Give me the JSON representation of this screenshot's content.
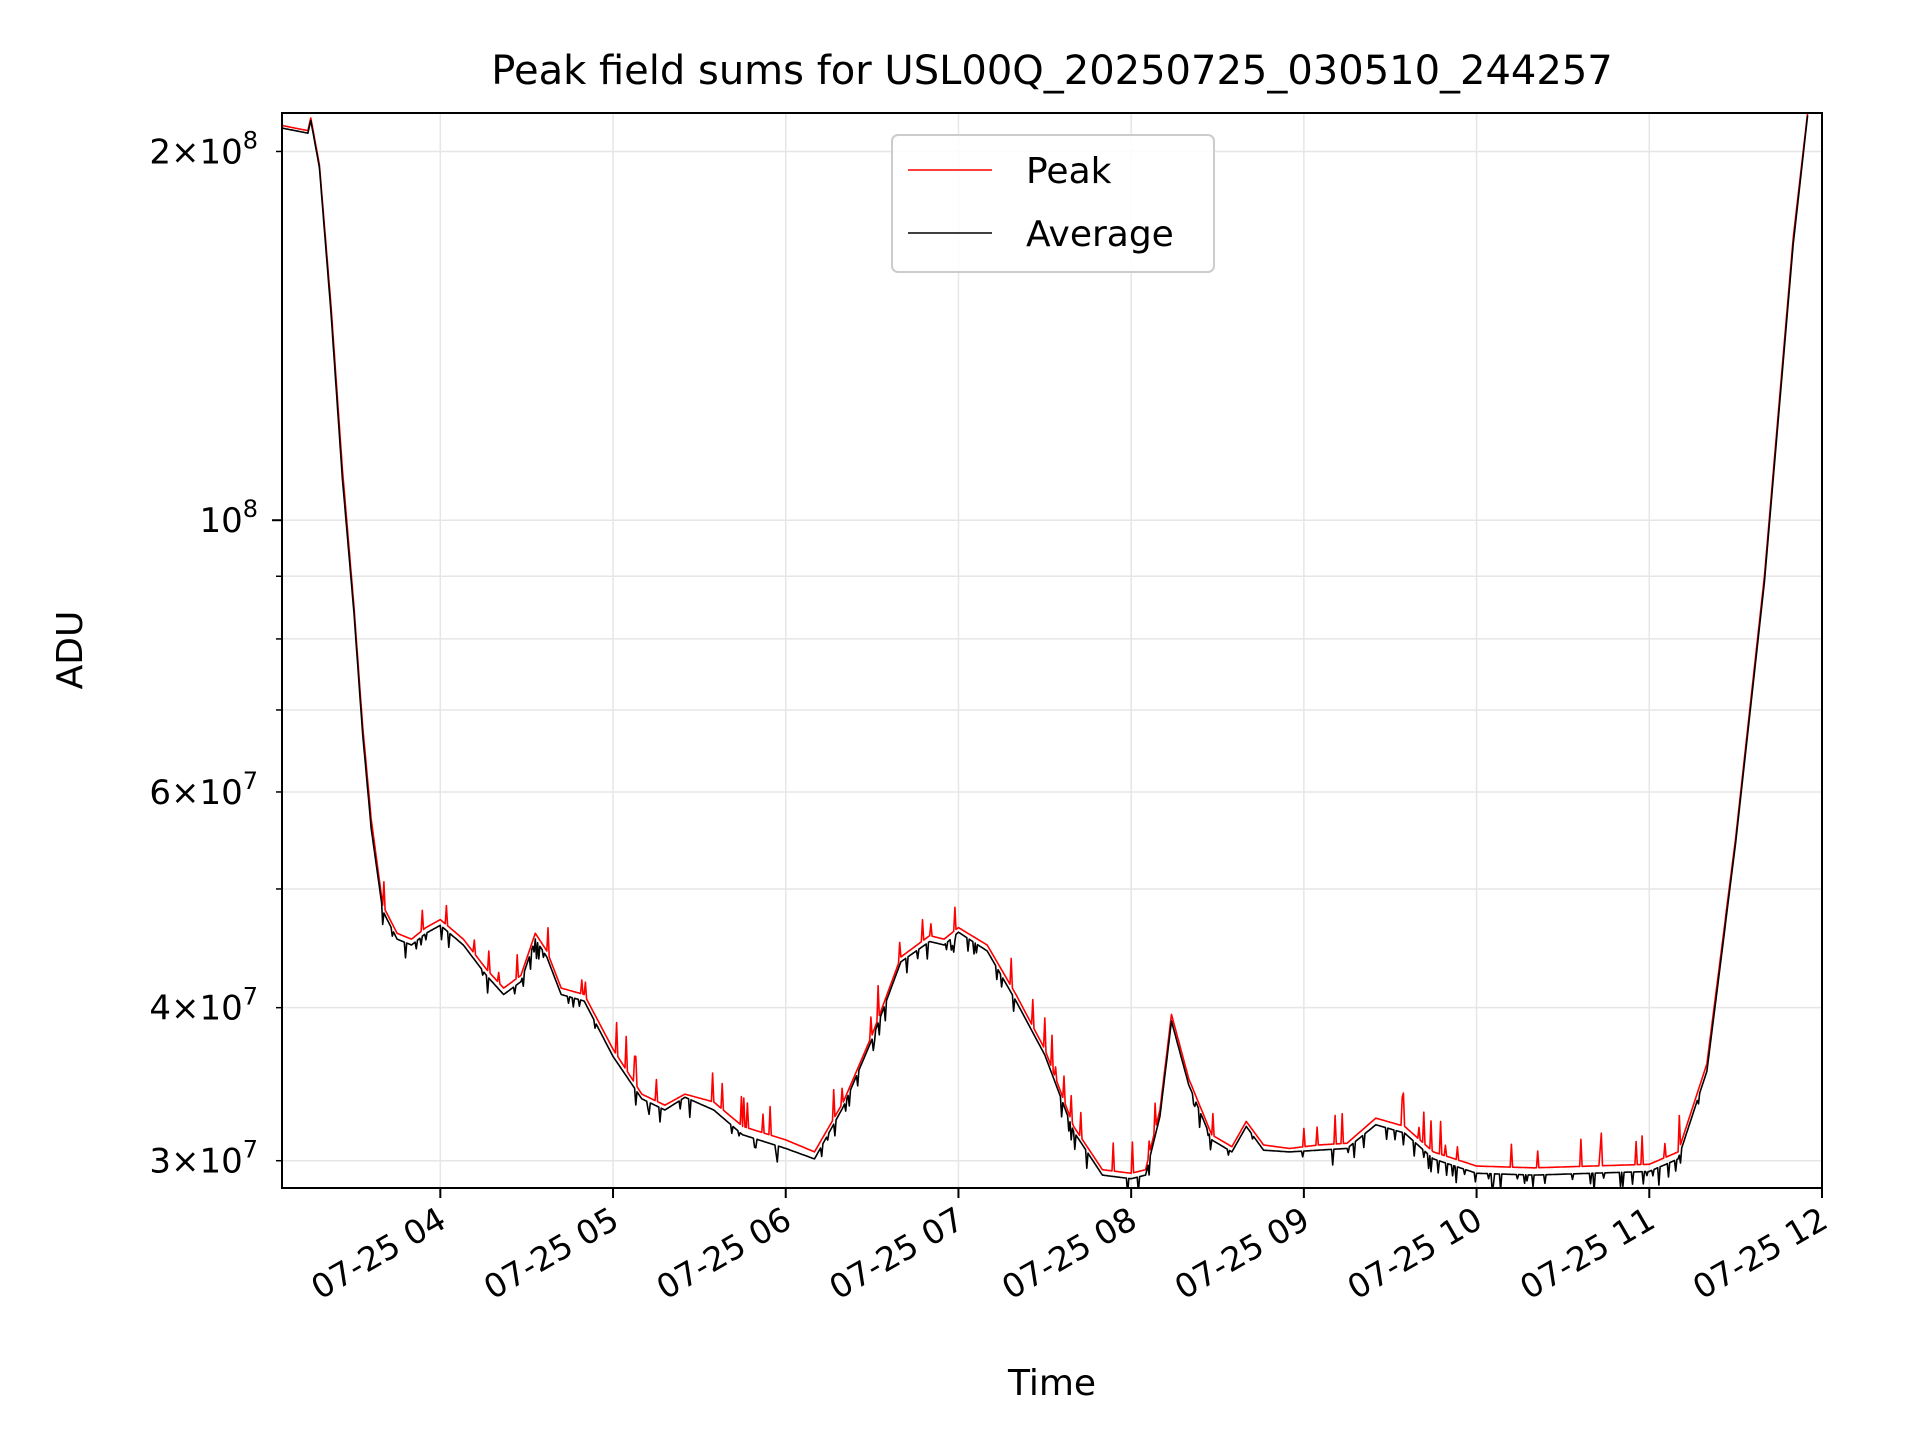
{
  "chart_data": {
    "type": "line",
    "title": "Peak field sums for USL00Q_20250725_030510_244257",
    "xlabel": "Time",
    "ylabel": "ADU",
    "yscale": "log",
    "grid": true,
    "legend_placement": "upper center",
    "xlim": [
      "2025-07-25 03:05",
      "2025-07-25 12:00"
    ],
    "ylim": [
      28500000,
      215000000
    ],
    "x_ticks": [
      {
        "value": "2025-07-25 04:00",
        "label": "07-25 04"
      },
      {
        "value": "2025-07-25 05:00",
        "label": "07-25 05"
      },
      {
        "value": "2025-07-25 06:00",
        "label": "07-25 06"
      },
      {
        "value": "2025-07-25 07:00",
        "label": "07-25 07"
      },
      {
        "value": "2025-07-25 08:00",
        "label": "07-25 08"
      },
      {
        "value": "2025-07-25 09:00",
        "label": "07-25 09"
      },
      {
        "value": "2025-07-25 10:00",
        "label": "07-25 10"
      },
      {
        "value": "2025-07-25 11:00",
        "label": "07-25 11"
      },
      {
        "value": "2025-07-25 12:00",
        "label": "07-25 12"
      }
    ],
    "y_major_ticks": [
      {
        "value": 100000000,
        "base": "10",
        "exp": "8"
      }
    ],
    "y_minor_ticks": [
      {
        "value": 30000000,
        "mant": "3",
        "base": "10",
        "exp": "7"
      },
      {
        "value": 40000000,
        "mant": "4",
        "base": "10",
        "exp": "7"
      },
      {
        "value": 50000000
      },
      {
        "value": 60000000,
        "mant": "6",
        "base": "10",
        "exp": "7"
      },
      {
        "value": 70000000
      },
      {
        "value": 80000000
      },
      {
        "value": 90000000
      },
      {
        "value": 200000000,
        "mant": "2",
        "base": "10",
        "exp": "8"
      }
    ],
    "series": [
      {
        "name": "Peak",
        "color": "#ff0000",
        "noise_side": "up",
        "points": [
          [
            "2025-07-25 03:05",
            210000000
          ],
          [
            "2025-07-25 03:14",
            208000000
          ],
          [
            "2025-07-25 03:15",
            213000000
          ],
          [
            "2025-07-25 03:18",
            195000000
          ],
          [
            "2025-07-25 03:22",
            150000000
          ],
          [
            "2025-07-25 03:26",
            110000000
          ],
          [
            "2025-07-25 03:30",
            85000000
          ],
          [
            "2025-07-25 03:33",
            68000000
          ],
          [
            "2025-07-25 03:36",
            57000000
          ],
          [
            "2025-07-25 03:40",
            48500000
          ],
          [
            "2025-07-25 03:45",
            46000000
          ],
          [
            "2025-07-25 03:50",
            45500000
          ],
          [
            "2025-07-25 03:55",
            46500000
          ],
          [
            "2025-07-25 04:00",
            47200000
          ],
          [
            "2025-07-25 04:08",
            45500000
          ],
          [
            "2025-07-25 04:16",
            43000000
          ],
          [
            "2025-07-25 04:22",
            41500000
          ],
          [
            "2025-07-25 04:28",
            42500000
          ],
          [
            "2025-07-25 04:33",
            46000000
          ],
          [
            "2025-07-25 04:37",
            44500000
          ],
          [
            "2025-07-25 04:42",
            41500000
          ],
          [
            "2025-07-25 04:50",
            41000000
          ],
          [
            "2025-07-25 05:00",
            37000000
          ],
          [
            "2025-07-25 05:10",
            34000000
          ],
          [
            "2025-07-25 05:18",
            33300000
          ],
          [
            "2025-07-25 05:25",
            34000000
          ],
          [
            "2025-07-25 05:35",
            33500000
          ],
          [
            "2025-07-25 05:45",
            32000000
          ],
          [
            "2025-07-25 06:00",
            31200000
          ],
          [
            "2025-07-25 06:10",
            30500000
          ],
          [
            "2025-07-25 06:20",
            33500000
          ],
          [
            "2025-07-25 06:30",
            38000000
          ],
          [
            "2025-07-25 06:40",
            44000000
          ],
          [
            "2025-07-25 06:50",
            45800000
          ],
          [
            "2025-07-25 06:55",
            45500000
          ],
          [
            "2025-07-25 07:00",
            46500000
          ],
          [
            "2025-07-25 07:10",
            45000000
          ],
          [
            "2025-07-25 07:20",
            41000000
          ],
          [
            "2025-07-25 07:30",
            37000000
          ],
          [
            "2025-07-25 07:40",
            32000000
          ],
          [
            "2025-07-25 07:50",
            29500000
          ],
          [
            "2025-07-25 08:00",
            29300000
          ],
          [
            "2025-07-25 08:05",
            29500000
          ],
          [
            "2025-07-25 08:10",
            33000000
          ],
          [
            "2025-07-25 08:14",
            39500000
          ],
          [
            "2025-07-25 08:20",
            35000000
          ],
          [
            "2025-07-25 08:28",
            31500000
          ],
          [
            "2025-07-25 08:35",
            30800000
          ],
          [
            "2025-07-25 08:40",
            32300000
          ],
          [
            "2025-07-25 08:46",
            30900000
          ],
          [
            "2025-07-25 08:55",
            30700000
          ],
          [
            "2025-07-25 09:05",
            30900000
          ],
          [
            "2025-07-25 09:15",
            31000000
          ],
          [
            "2025-07-25 09:25",
            32500000
          ],
          [
            "2025-07-25 09:35",
            32000000
          ],
          [
            "2025-07-25 09:45",
            30500000
          ],
          [
            "2025-07-25 10:00",
            29700000
          ],
          [
            "2025-07-25 10:20",
            29600000
          ],
          [
            "2025-07-25 10:40",
            29700000
          ],
          [
            "2025-07-25 11:00",
            29800000
          ],
          [
            "2025-07-25 11:10",
            30500000
          ],
          [
            "2025-07-25 11:20",
            36000000
          ],
          [
            "2025-07-25 11:30",
            55000000
          ],
          [
            "2025-07-25 11:40",
            90000000
          ],
          [
            "2025-07-25 11:50",
            170000000
          ],
          [
            "2025-07-25 11:55",
            215000000
          ]
        ]
      },
      {
        "name": "Average",
        "color": "#000000",
        "noise_side": "down",
        "points": [
          [
            "2025-07-25 03:05",
            209000000
          ],
          [
            "2025-07-25 03:14",
            207000000
          ],
          [
            "2025-07-25 03:15",
            212000000
          ],
          [
            "2025-07-25 03:18",
            194000000
          ],
          [
            "2025-07-25 03:22",
            148000000
          ],
          [
            "2025-07-25 03:26",
            108000000
          ],
          [
            "2025-07-25 03:30",
            84000000
          ],
          [
            "2025-07-25 03:33",
            67000000
          ],
          [
            "2025-07-25 03:36",
            56000000
          ],
          [
            "2025-07-25 03:40",
            48000000
          ],
          [
            "2025-07-25 03:45",
            45500000
          ],
          [
            "2025-07-25 03:50",
            45000000
          ],
          [
            "2025-07-25 03:55",
            46000000
          ],
          [
            "2025-07-25 04:00",
            46700000
          ],
          [
            "2025-07-25 04:08",
            45000000
          ],
          [
            "2025-07-25 04:16",
            42500000
          ],
          [
            "2025-07-25 04:22",
            41000000
          ],
          [
            "2025-07-25 04:28",
            42000000
          ],
          [
            "2025-07-25 04:33",
            45500000
          ],
          [
            "2025-07-25 04:37",
            44000000
          ],
          [
            "2025-07-25 04:42",
            41000000
          ],
          [
            "2025-07-25 04:50",
            40500000
          ],
          [
            "2025-07-25 05:00",
            36500000
          ],
          [
            "2025-07-25 05:10",
            33700000
          ],
          [
            "2025-07-25 05:18",
            33000000
          ],
          [
            "2025-07-25 05:25",
            33800000
          ],
          [
            "2025-07-25 05:35",
            33000000
          ],
          [
            "2025-07-25 05:45",
            31500000
          ],
          [
            "2025-07-25 06:00",
            30700000
          ],
          [
            "2025-07-25 06:10",
            30100000
          ],
          [
            "2025-07-25 06:20",
            33200000
          ],
          [
            "2025-07-25 06:30",
            37700000
          ],
          [
            "2025-07-25 06:40",
            43600000
          ],
          [
            "2025-07-25 06:50",
            45300000
          ],
          [
            "2025-07-25 06:55",
            45000000
          ],
          [
            "2025-07-25 07:00",
            46100000
          ],
          [
            "2025-07-25 07:10",
            44500000
          ],
          [
            "2025-07-25 07:20",
            40500000
          ],
          [
            "2025-07-25 07:30",
            36600000
          ],
          [
            "2025-07-25 07:40",
            31700000
          ],
          [
            "2025-07-25 07:50",
            29200000
          ],
          [
            "2025-07-25 08:00",
            29000000
          ],
          [
            "2025-07-25 08:05",
            29200000
          ],
          [
            "2025-07-25 08:10",
            32600000
          ],
          [
            "2025-07-25 08:14",
            39000000
          ],
          [
            "2025-07-25 08:20",
            34600000
          ],
          [
            "2025-07-25 08:28",
            31200000
          ],
          [
            "2025-07-25 08:35",
            30500000
          ],
          [
            "2025-07-25 08:40",
            32000000
          ],
          [
            "2025-07-25 08:46",
            30600000
          ],
          [
            "2025-07-25 08:55",
            30500000
          ],
          [
            "2025-07-25 09:05",
            30600000
          ],
          [
            "2025-07-25 09:15",
            30700000
          ],
          [
            "2025-07-25 09:25",
            32100000
          ],
          [
            "2025-07-25 09:35",
            31600000
          ],
          [
            "2025-07-25 09:45",
            30100000
          ],
          [
            "2025-07-25 10:00",
            29300000
          ],
          [
            "2025-07-25 10:20",
            29200000
          ],
          [
            "2025-07-25 10:40",
            29300000
          ],
          [
            "2025-07-25 11:00",
            29400000
          ],
          [
            "2025-07-25 11:10",
            30100000
          ],
          [
            "2025-07-25 11:20",
            35500000
          ],
          [
            "2025-07-25 11:30",
            54500000
          ],
          [
            "2025-07-25 11:40",
            89000000
          ],
          [
            "2025-07-25 11:50",
            168000000
          ],
          [
            "2025-07-25 11:55",
            214000000
          ]
        ]
      }
    ]
  }
}
